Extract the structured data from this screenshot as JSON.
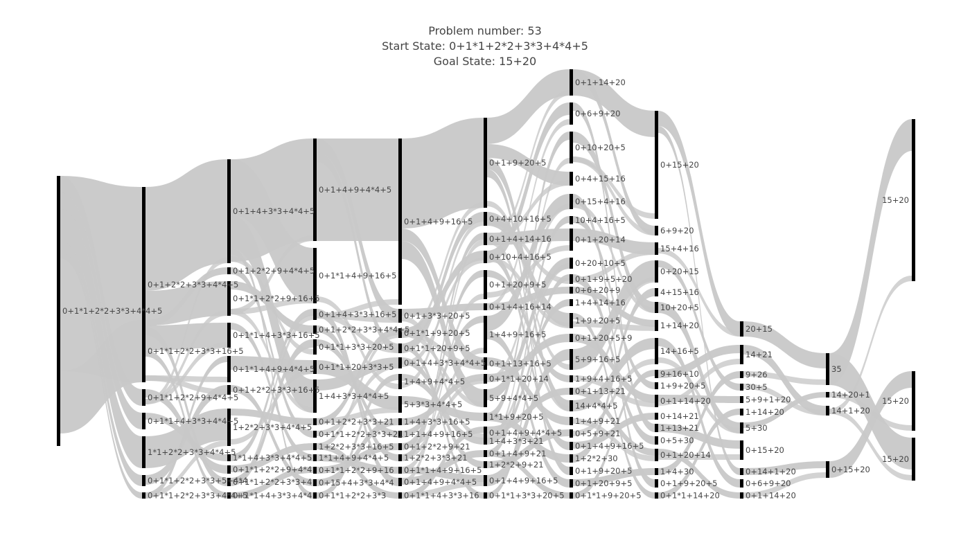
{
  "title": {
    "line1": "Problem number: 53",
    "line2": "Start State: 0+1*1+2*2+3*3+4*4+5",
    "line3": "Goal State: 15+20"
  },
  "colors": {
    "link": "#c8c8c8",
    "node": "#000000",
    "label": "#444444"
  },
  "columns": [
    [
      "0+1*1+2*2+3*3+4*4+5"
    ],
    [
      "0+1+2*2+3*3+4*4+5",
      "0+1*1+2*2+3*3+16+5",
      "0+1*1+2*2+9+4*4+5",
      "0+1*1+4+3*3+4*4+5",
      "1*1+2*2+3*3+4*4+5",
      "0+1*1+2*2+3*3+5+4*4",
      "0+1*1+2*2+3*3+4*4+5"
    ],
    [
      "0+1+4+3*3+4*4+5",
      "0+1+2*2+9+4*4+5",
      "0+1*1+2*2+9+16+5",
      "0+1*1+4+3*3+16+5",
      "0+1*1+4+9+4*4+5",
      "0+1+2*2+3*3+16+5",
      "1+2*2+3*3+4*4+5",
      "1*1+4+3*3+4*4+5",
      "0+1*1+2*2+9+4*4",
      "0+1*1+2*2+3*3+4",
      "0+1*1+4+3*3+4*4"
    ],
    [
      "0+1+4+9+4*4+5",
      "0+1*1+4+9+16+5",
      "0+1+4+3*3+16+5",
      "0+1+2*2+3*3+4*4+5",
      "0+1*1+3*3+20+5",
      "0+1*1+20+3*3+5",
      "1+4+3*3+4*4+5",
      "0+1+2*2+3*3+21",
      "0+1*1+2*2+3*3+21",
      "1+2*2+3*3+16+5",
      "1*1+4+9+4*4+5",
      "0+1*1+2*2+9+16",
      "0+15+4+3*3+4*4",
      "0+1*1+2*2+3*3"
    ],
    [
      "0+1+4+9+16+5",
      "0+1+3*3+20+5",
      "0+1*1+9+20+5",
      "0+1*1+20+9+5",
      "0+1+4+3*3+4*4+5",
      "1+4+9+4*4+5",
      "5+3*3+4*4+5",
      "1+4+3*3+16+5",
      "1+1+4+9+16+5",
      "0+1+2*2+9+21",
      "1+2*2+3*3+21",
      "0+1*1+4+9+16+5",
      "0+1+4+9+4*4+5",
      "0+1*1+4+3*3+16"
    ],
    [
      "0+1+9+20+5",
      "0+4+10+16+5",
      "0+1+4+14+16",
      "0+10+4+16+5",
      "0+1+20+9+5",
      "0+1+4+16+14",
      "1+4+9+16+5",
      "0+1+13+16+5",
      "0+1*1+20+14",
      "5+9+4*4+5",
      "1*1+9+20+5",
      "0+1+4+9+4*4+5",
      "1+4+3*3+21",
      "0+1+4+9+21",
      "1+2*2+9+21",
      "0+1+4+9+16+5",
      "0+1*1+3*3+20+5"
    ],
    [
      "0+1+14+20",
      "0+6+9+20",
      "0+10+20+5",
      "0+4+15+16",
      "0+15+4+16",
      "10+4+16+5",
      "0+1+20+14",
      "0+20+10+5",
      "0+1+9+5+20",
      "0+6+20+9",
      "1+4+14+16",
      "1+9+20+5",
      "0+1+20+5+9",
      "5+9+16+5",
      "1+9+4+16+5",
      "0+1+13+21",
      "14+4*4+5",
      "1+4+9+21",
      "0+5+9+21",
      "0+1+4+9+16+5",
      "1+2*2+30",
      "0+1+9+20+5",
      "0+1+20+9+5",
      "0+1*1+9+20+5"
    ],
    [
      "0+15+20",
      "6+9+20",
      "15+4+16",
      "0+20+15",
      "4+15+16",
      "10+20+5",
      "1+14+20",
      "14+16+5",
      "9+16+10",
      "1+9+20+5",
      "0+1+14+20",
      "0+14+21",
      "1+13+21",
      "0+5+30",
      "0+1+20+14",
      "1+4+30",
      "0+1+9+20+5",
      "0+1*1+14+20"
    ],
    [
      "20+15",
      "14+21",
      "9+26",
      "30+5",
      "5+9+1+20",
      "1+14+20",
      "5+30",
      "0+15+20",
      "0+14+1+20",
      "0+6+9+20",
      "0+1+14+20"
    ],
    [
      "35",
      "14+20+1",
      "14+1+20",
      "0+15+20"
    ],
    [
      "15+20",
      "15+20",
      "15+20"
    ]
  ]
}
